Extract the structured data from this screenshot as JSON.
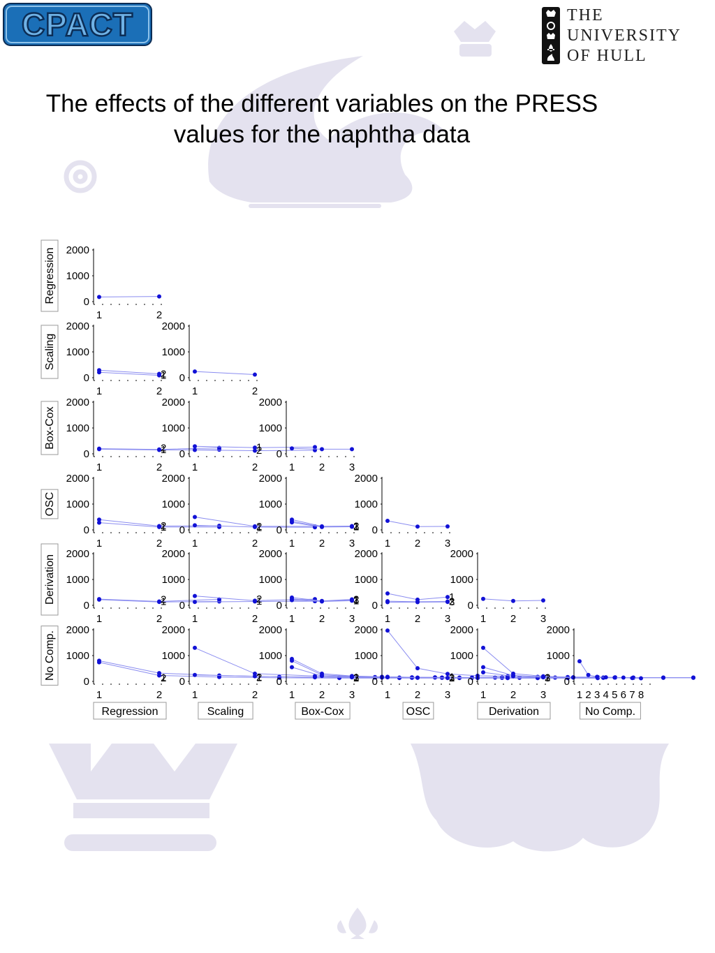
{
  "header": {
    "left_logo_text": "CPACT",
    "right_logo_lines": [
      "THE",
      "UNIVERSITY",
      "OF HULL"
    ]
  },
  "title": {
    "line1": "The effects of the different variables on the PRESS",
    "line2": "values for the naphtha data"
  },
  "colors": {
    "series_line": "#8a8cf0",
    "series_point": "#1212d6",
    "watermark": "#e4e2ef",
    "cpact_blue": "#1b6fb7",
    "cpact_dark": "#0c2d55"
  },
  "chart_data": {
    "type": "scatter-matrix",
    "variables": [
      "Regression",
      "Scaling",
      "Box-Cox",
      "OSC",
      "Derivation",
      "No Comp."
    ],
    "row_labels": [
      "Regression",
      "Scaling",
      "Box-Cox",
      "OSC",
      "Derivation",
      "No Comp."
    ],
    "column_labels": [
      "Regression",
      "Scaling",
      "Box-Cox",
      "OSC",
      "Derivation",
      "No Comp."
    ],
    "ylim": [
      0,
      2000
    ],
    "yticks": [
      0,
      1000,
      2000
    ],
    "x_levels": [
      2,
      2,
      3,
      3,
      3,
      8
    ],
    "panels": [
      {
        "row": 0,
        "col": 0,
        "series": [
          {
            "name": "",
            "values": [
              180,
              200
            ]
          }
        ]
      },
      {
        "row": 1,
        "col": 0,
        "series": [
          {
            "name": "1",
            "values": [
              210,
              90
            ]
          },
          {
            "name": "2",
            "values": [
              290,
              150
            ]
          }
        ]
      },
      {
        "row": 1,
        "col": 1,
        "series": [
          {
            "name": "",
            "values": [
              240,
              120
            ]
          }
        ]
      },
      {
        "row": 2,
        "col": 0,
        "series": [
          {
            "name": "1",
            "values": [
              180,
              150,
              160
            ]
          },
          {
            "name": "2",
            "values": [
              200,
              170,
              230
            ]
          }
        ]
      },
      {
        "row": 2,
        "col": 1,
        "series": [
          {
            "name": "1",
            "values": [
              290,
              240,
              260
            ]
          },
          {
            "name": "2",
            "values": [
              150,
              120,
              140
            ]
          }
        ]
      },
      {
        "row": 2,
        "col": 2,
        "series": [
          {
            "name": "",
            "values": [
              210,
              180,
              180
            ]
          }
        ]
      },
      {
        "row": 3,
        "col": 0,
        "series": [
          {
            "name": "1",
            "values": [
              280,
              110,
              110
            ]
          },
          {
            "name": "2",
            "values": [
              400,
              150,
              160
            ]
          }
        ]
      },
      {
        "row": 3,
        "col": 1,
        "series": [
          {
            "name": "1",
            "values": [
              180,
              110,
              100
            ]
          },
          {
            "name": "2",
            "values": [
              500,
              140,
              140
            ]
          }
        ]
      },
      {
        "row": 3,
        "col": 2,
        "series": [
          {
            "name": "1",
            "values": [
              290,
              110,
              120
            ]
          },
          {
            "name": "2",
            "values": [
              400,
              140,
              150
            ]
          },
          {
            "name": "3",
            "values": [
              330,
              120,
              130
            ]
          }
        ]
      },
      {
        "row": 3,
        "col": 3,
        "series": [
          {
            "name": "",
            "values": [
              350,
              130,
              135
            ]
          }
        ]
      },
      {
        "row": 4,
        "col": 0,
        "series": [
          {
            "name": "1",
            "values": [
              220,
              130,
              150
            ]
          },
          {
            "name": "2",
            "values": [
              240,
              150,
              230
            ]
          }
        ]
      },
      {
        "row": 4,
        "col": 1,
        "series": [
          {
            "name": "1",
            "values": [
              130,
              150,
              160
            ]
          },
          {
            "name": "2",
            "values": [
              360,
              180,
              240
            ]
          }
        ]
      },
      {
        "row": 4,
        "col": 2,
        "series": [
          {
            "name": "1",
            "values": [
              200,
              150,
              180
            ]
          },
          {
            "name": "2",
            "values": [
              300,
              170,
              230
            ]
          },
          {
            "name": "3",
            "values": [
              250,
              160,
              200
            ]
          }
        ]
      },
      {
        "row": 4,
        "col": 3,
        "series": [
          {
            "name": "1",
            "values": [
              460,
              220,
              320
            ]
          },
          {
            "name": "2",
            "values": [
              160,
              140,
              150
            ]
          },
          {
            "name": "3",
            "values": [
              120,
              120,
              130
            ]
          }
        ]
      },
      {
        "row": 4,
        "col": 4,
        "series": [
          {
            "name": "",
            "values": [
              250,
              170,
              190
            ]
          }
        ]
      },
      {
        "row": 5,
        "col": 0,
        "series": [
          {
            "name": "1",
            "values": [
              800,
              320,
              230,
              180,
              160,
              150,
              150,
              150
            ]
          },
          {
            "name": "2",
            "values": [
              740,
              230,
              170,
              140,
              130,
              130,
              130,
              140
            ]
          }
        ]
      },
      {
        "row": 5,
        "col": 1,
        "series": [
          {
            "name": "1",
            "values": [
              250,
              200,
              160,
              150,
              150,
              150,
              150,
              150
            ]
          },
          {
            "name": "2",
            "values": [
              1300,
              300,
              210,
              170,
              160,
              150,
              150,
              160
            ]
          }
        ]
      },
      {
        "row": 5,
        "col": 2,
        "series": [
          {
            "name": "1",
            "values": [
              870,
              300,
              210,
              180,
              160,
              150,
              150,
              160
            ]
          },
          {
            "name": "2",
            "values": [
              550,
              210,
              160,
              150,
              140,
              140,
              140,
              140
            ]
          },
          {
            "name": "3",
            "values": [
              800,
              250,
              200,
              170,
              150,
              150,
              150,
              150
            ]
          }
        ]
      },
      {
        "row": 5,
        "col": 3,
        "series": [
          {
            "name": "1",
            "values": [
              1970,
              510,
              290,
              220,
              200,
              180,
              170,
              170
            ]
          },
          {
            "name": "2",
            "values": [
              180,
              150,
              140,
              140,
              130,
              130,
              130,
              130
            ]
          },
          {
            "name": "3",
            "values": [
              160,
              140,
              130,
              130,
              130,
              130,
              130,
              130
            ]
          }
        ]
      },
      {
        "row": 5,
        "col": 4,
        "series": [
          {
            "name": "1",
            "values": [
              1300,
              300,
              200,
              160,
              150,
              150,
              150,
              150
            ]
          },
          {
            "name": "2",
            "values": [
              550,
              230,
              180,
              160,
              150,
              150,
              150,
              150
            ]
          },
          {
            "name": "3",
            "values": [
              350,
              200,
              160,
              150,
              140,
              140,
              140,
              140
            ]
          }
        ]
      },
      {
        "row": 5,
        "col": 5,
        "series": [
          {
            "name": "",
            "values": [
              780,
              250,
              180,
              160,
              150,
              150,
              130,
              120
            ]
          }
        ]
      }
    ]
  }
}
